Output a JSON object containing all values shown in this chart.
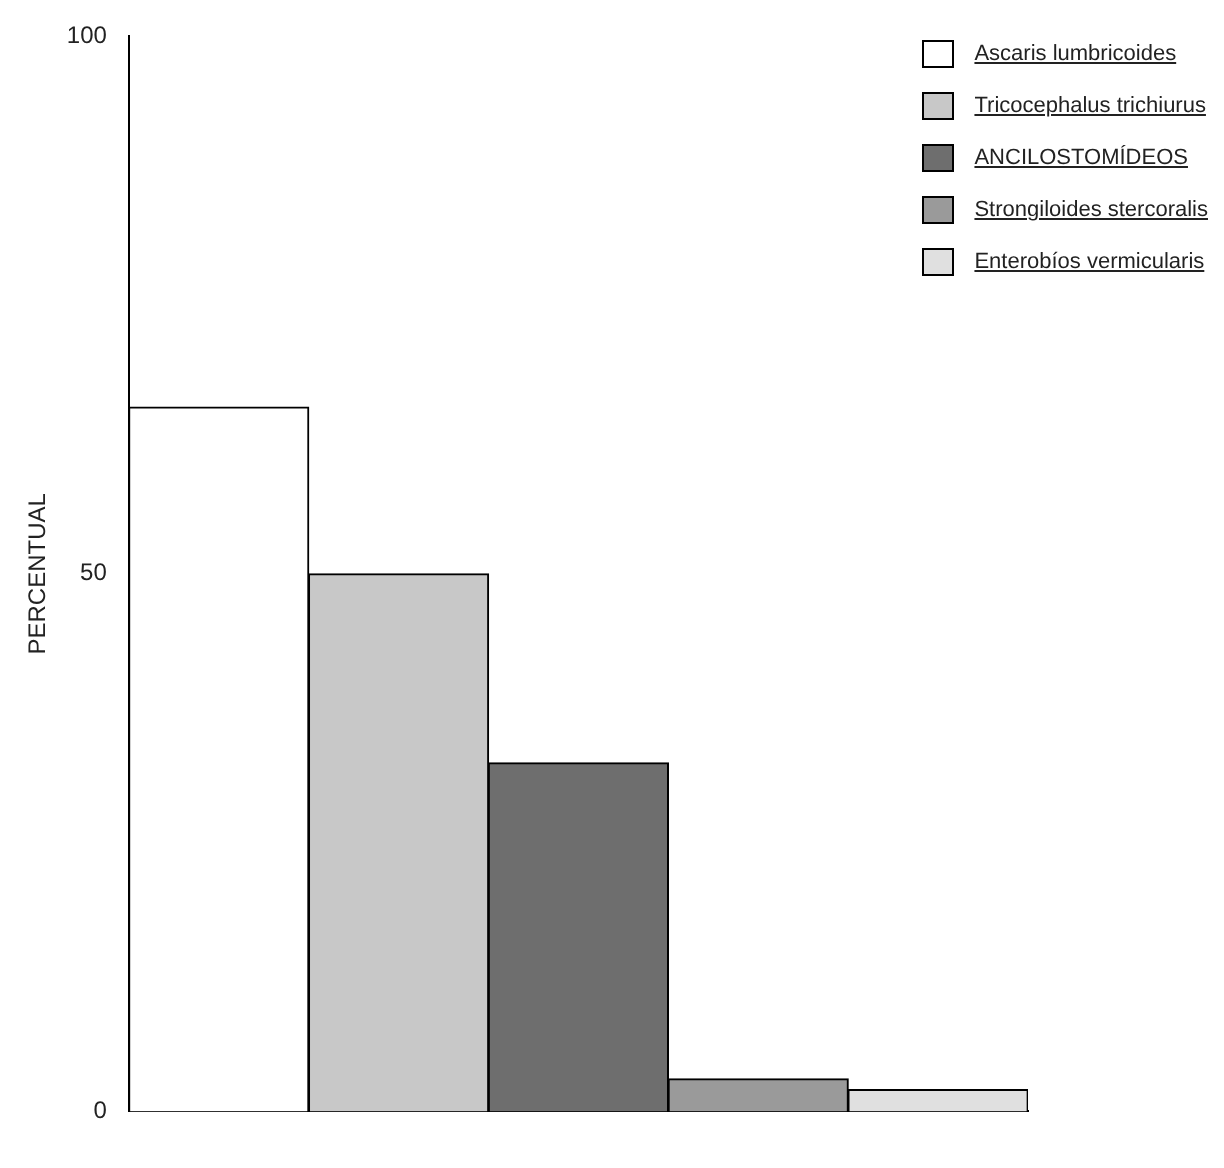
{
  "chart_data": {
    "type": "bar",
    "ylabel": "PERCENTUAL",
    "categories": [
      null,
      null,
      null,
      null,
      null
    ],
    "series": [
      {
        "name": "Ascaris lumbricoides",
        "color": "#ffffff",
        "values": [
          65.5,
          null,
          null,
          null,
          null
        ]
      },
      {
        "name": "Tricocephalus trichiurus",
        "color": "#c8c8c8",
        "values": [
          null,
          50,
          null,
          null,
          null
        ]
      },
      {
        "name": "ANCILOSTOMÍDEOS",
        "color": "#6e6e6e",
        "values": [
          null,
          null,
          32.4,
          null,
          null
        ]
      },
      {
        "name": "Strongiloides stercoralis",
        "color": "#9a9a9a",
        "values": [
          null,
          null,
          null,
          3,
          null
        ]
      },
      {
        "name": "Enterobíos vermicularis",
        "color": "#e0e0e0",
        "values": [
          null,
          null,
          null,
          null,
          2
        ]
      }
    ],
    "ylim": [
      0,
      100
    ],
    "yticks": [
      0,
      50,
      100
    ],
    "grid": false,
    "legend": "top right"
  }
}
